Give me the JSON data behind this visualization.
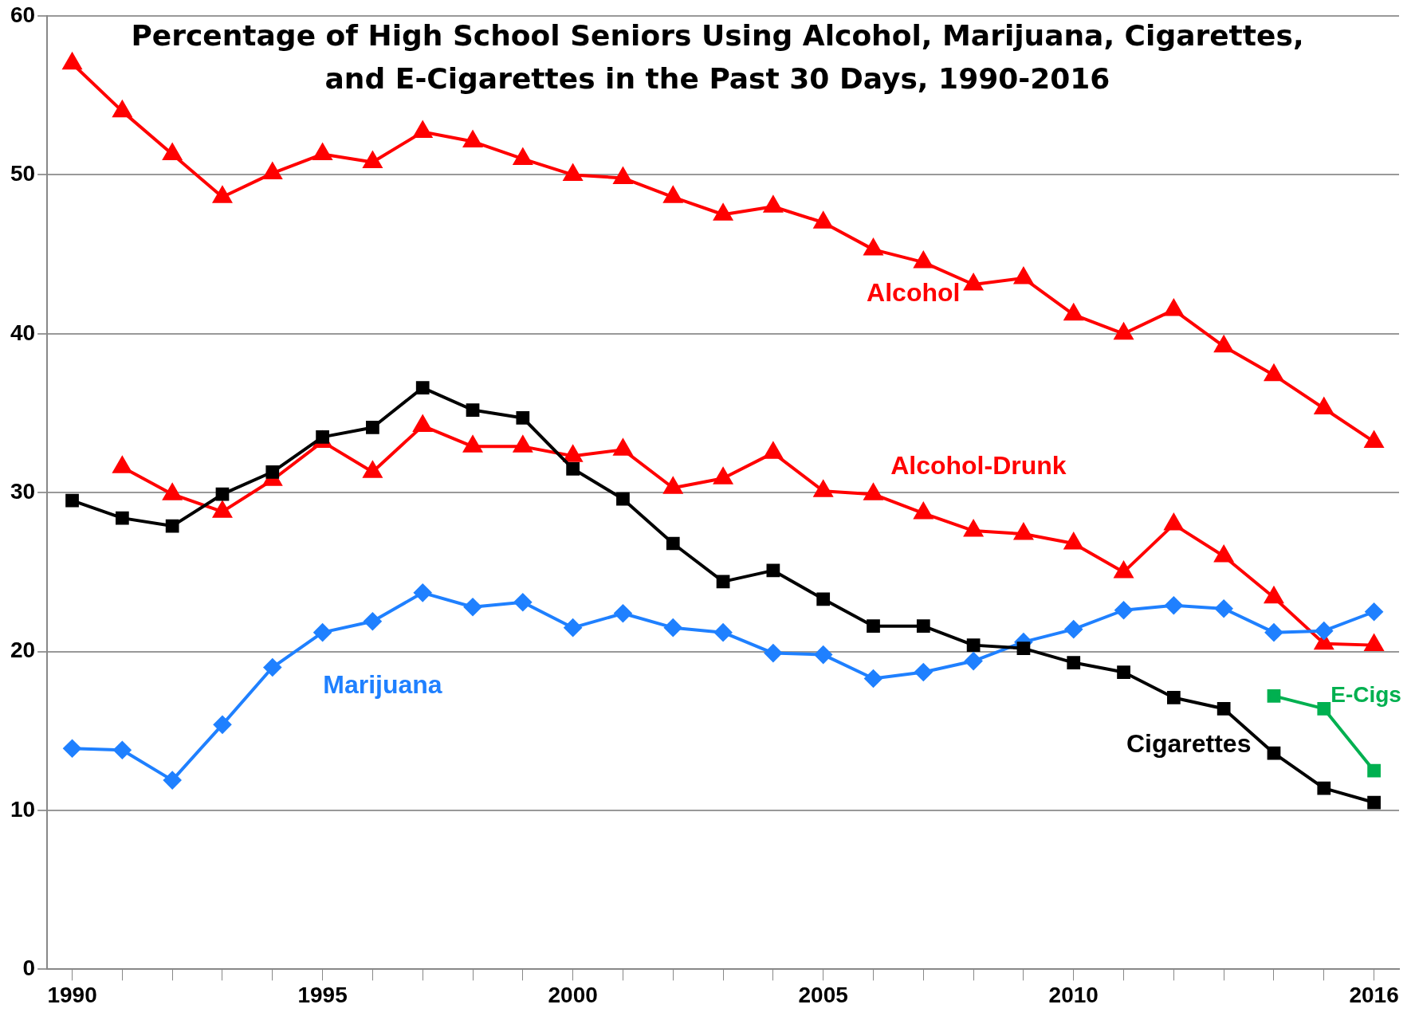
{
  "chart_data": {
    "type": "line",
    "title": "Percentage of High School Seniors Using Alcohol, Marijuana, Cigarettes, and E-Cigarettes in the Past 30 Days, 1990-2016",
    "x": [
      1990,
      1991,
      1992,
      1993,
      1994,
      1995,
      1996,
      1997,
      1998,
      1999,
      2000,
      2001,
      2002,
      2003,
      2004,
      2005,
      2006,
      2007,
      2008,
      2009,
      2010,
      2011,
      2012,
      2013,
      2014,
      2015,
      2016
    ],
    "series": [
      {
        "name": "Alcohol",
        "color": "#ff0000",
        "marker": "triangle",
        "values": [
          57.0,
          54.0,
          51.3,
          48.6,
          50.1,
          51.3,
          50.8,
          52.7,
          52.1,
          51.0,
          50.0,
          49.8,
          48.6,
          47.5,
          48.0,
          47.0,
          45.3,
          44.5,
          43.1,
          43.5,
          41.2,
          40.0,
          41.5,
          39.2,
          37.4,
          35.3,
          33.2
        ]
      },
      {
        "name": "Alcohol-Drunk",
        "color": "#ff0000",
        "marker": "triangle",
        "values": [
          null,
          31.6,
          29.9,
          28.8,
          30.8,
          33.2,
          31.3,
          34.2,
          32.9,
          32.9,
          32.3,
          32.7,
          30.3,
          30.9,
          32.5,
          30.1,
          29.9,
          28.7,
          27.6,
          27.4,
          26.8,
          25.0,
          28.0,
          26.0,
          23.4,
          20.5,
          20.4
        ]
      },
      {
        "name": "Cigarettes",
        "color": "#000000",
        "marker": "square",
        "values": [
          29.5,
          28.4,
          27.9,
          29.9,
          31.3,
          33.5,
          34.1,
          36.6,
          35.2,
          34.7,
          31.5,
          29.6,
          26.8,
          24.4,
          25.1,
          23.3,
          21.6,
          21.6,
          20.4,
          20.2,
          19.3,
          18.7,
          17.1,
          16.4,
          13.6,
          11.4,
          10.5
        ]
      },
      {
        "name": "Marijuana",
        "color": "#1f80ff",
        "marker": "diamond",
        "values": [
          13.9,
          13.8,
          11.9,
          15.4,
          19.0,
          21.2,
          21.9,
          23.7,
          22.8,
          23.1,
          21.5,
          22.4,
          21.5,
          21.2,
          19.9,
          19.8,
          18.3,
          18.7,
          19.4,
          20.6,
          21.4,
          22.6,
          22.9,
          22.7,
          21.2,
          21.3,
          22.5
        ]
      },
      {
        "name": "E-Cigs",
        "color": "#00b050",
        "marker": "square",
        "x": [
          2014,
          2015,
          2016
        ],
        "values": [
          17.2,
          16.4,
          12.5
        ]
      }
    ],
    "xlim": [
      1989.5,
      2016.5
    ],
    "xticks": [
      1990,
      {
        "value": 1991,
        "label": null
      },
      {
        "value": 1992,
        "label": null
      },
      {
        "value": 1993,
        "label": null
      },
      {
        "value": 1994,
        "label": null
      },
      1995,
      {
        "value": 1996,
        "label": null
      },
      {
        "value": 1997,
        "label": null
      },
      {
        "value": 1998,
        "label": null
      },
      {
        "value": 1999,
        "label": null
      },
      2000,
      {
        "value": 2001,
        "label": null
      },
      {
        "value": 2002,
        "label": null
      },
      {
        "value": 2003,
        "label": null
      },
      {
        "value": 2004,
        "label": null
      },
      2005,
      {
        "value": 2006,
        "label": null
      },
      {
        "value": 2007,
        "label": null
      },
      {
        "value": 2008,
        "label": null
      },
      {
        "value": 2009,
        "label": null
      },
      2010,
      {
        "value": 2011,
        "label": null
      },
      {
        "value": 2012,
        "label": null
      },
      {
        "value": 2013,
        "label": null
      },
      {
        "value": 2014,
        "label": null
      },
      {
        "value": 2015,
        "label": null
      },
      2016
    ],
    "ylim": [
      0,
      60
    ],
    "yticks": [
      0,
      10,
      20,
      30,
      40,
      50,
      60
    ],
    "grid": "y",
    "legend": false
  }
}
